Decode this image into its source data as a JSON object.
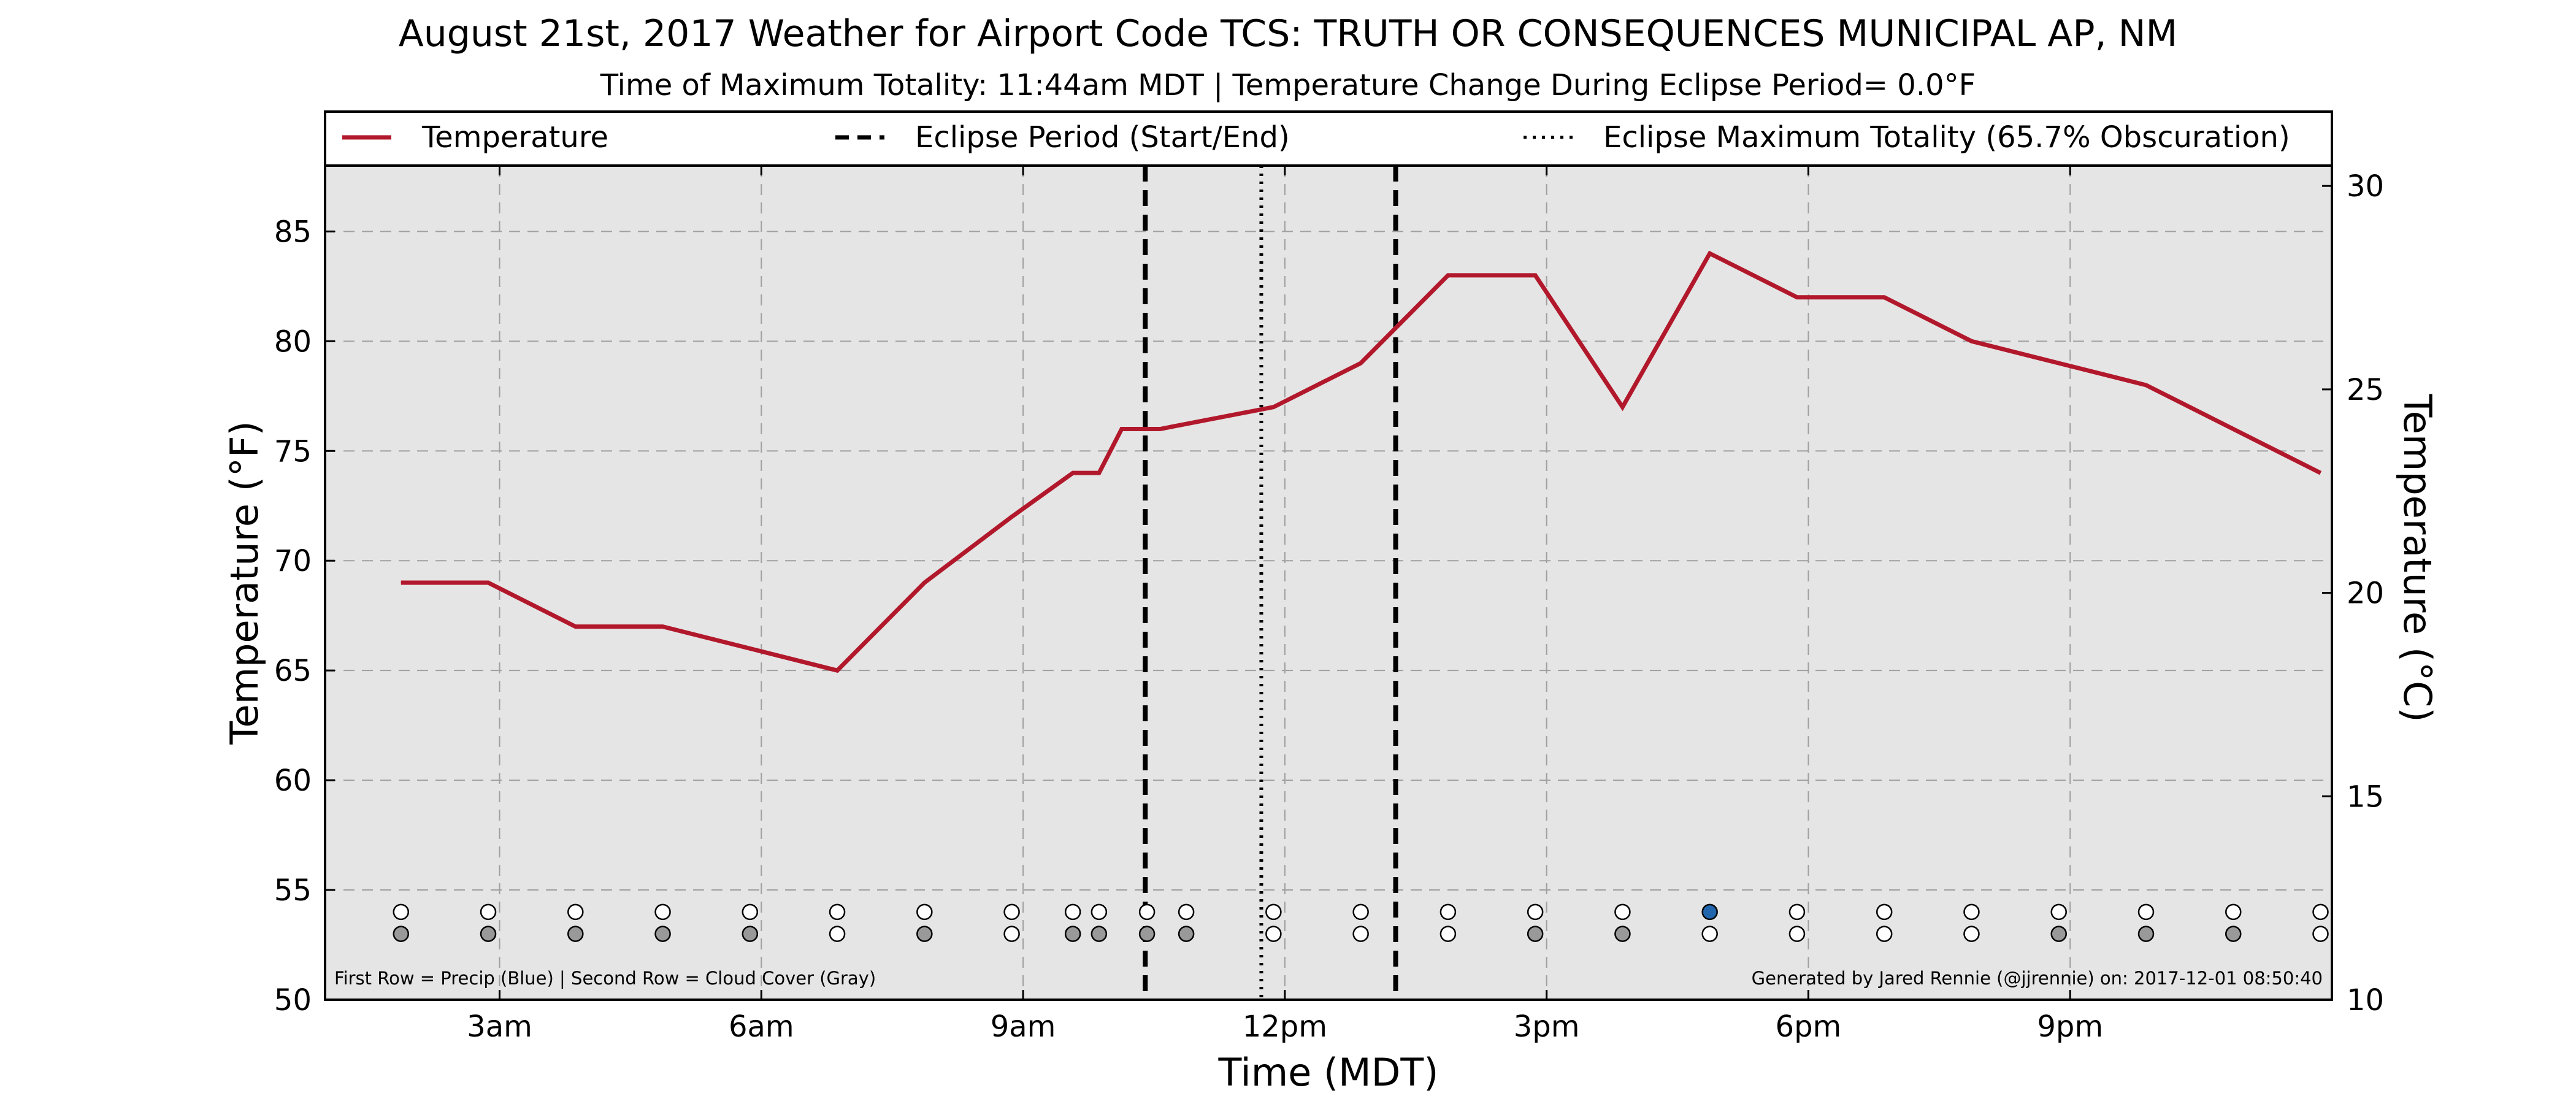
{
  "chart_data": {
    "type": "line",
    "title": "August 21st, 2017 Weather for Airport Code TCS: TRUTH OR CONSEQUENCES MUNICIPAL AP, NM",
    "subtitle": "Time of Maximum Totality: 11:44am MDT | Temperature Change During Eclipse Period= 0.0°F",
    "xlabel": "Time (MDT)",
    "ylabel": "Temperature (°F)",
    "y2label": "Temperature (°C)",
    "x_unit": "hours after midnight MDT, Aug 21 2017",
    "xlim": [
      1,
      24
    ],
    "ylim": [
      50,
      88
    ],
    "y2lim": [
      10,
      30.5
    ],
    "x_ticks": [
      {
        "x": 3,
        "label": "3am"
      },
      {
        "x": 6,
        "label": "6am"
      },
      {
        "x": 9,
        "label": "9am"
      },
      {
        "x": 12,
        "label": "12pm"
      },
      {
        "x": 15,
        "label": "3pm"
      },
      {
        "x": 18,
        "label": "6pm"
      },
      {
        "x": 21,
        "label": "9pm"
      }
    ],
    "y_ticks": [
      50,
      55,
      60,
      65,
      70,
      75,
      80,
      85
    ],
    "y2_ticks": [
      10,
      15,
      20,
      25,
      30
    ],
    "grid": true,
    "legend_placement": "top",
    "legend": [
      {
        "label": "Temperature",
        "style": "solid",
        "color": "#b2182b"
      },
      {
        "label": "Eclipse Period (Start/End)",
        "style": "dashed",
        "color": "#000000"
      },
      {
        "label": "Eclipse Maximum Totality (65.7% Obscuration)",
        "style": "dotted",
        "color": "#000000"
      }
    ],
    "series": [
      {
        "name": "Temperature",
        "color": "#b2182b",
        "points": [
          [
            1.87,
            69
          ],
          [
            2.87,
            69
          ],
          [
            3.87,
            67
          ],
          [
            4.87,
            67
          ],
          [
            5.87,
            66
          ],
          [
            6.87,
            65
          ],
          [
            7.87,
            69
          ],
          [
            8.87,
            72
          ],
          [
            9.57,
            74
          ],
          [
            9.87,
            74
          ],
          [
            10.13,
            76
          ],
          [
            10.57,
            76
          ],
          [
            11.87,
            77
          ],
          [
            12.87,
            79
          ],
          [
            13.87,
            83
          ],
          [
            14.87,
            83
          ],
          [
            15.87,
            77
          ],
          [
            16.87,
            84
          ],
          [
            17.87,
            82
          ],
          [
            18.87,
            82
          ],
          [
            19.87,
            80
          ],
          [
            20.87,
            79
          ],
          [
            21.87,
            78
          ],
          [
            22.87,
            76
          ],
          [
            23.87,
            74
          ]
        ]
      }
    ],
    "eclipse_start": 10.4,
    "eclipse_end": 13.27,
    "eclipse_max": 11.73,
    "marker_rows": {
      "precip_y": 54,
      "cloud_y": 53,
      "points": [
        {
          "x": 1.87,
          "precip": "white",
          "cloud": "gray"
        },
        {
          "x": 2.87,
          "precip": "white",
          "cloud": "gray"
        },
        {
          "x": 3.87,
          "precip": "white",
          "cloud": "gray"
        },
        {
          "x": 4.87,
          "precip": "white",
          "cloud": "gray"
        },
        {
          "x": 5.87,
          "precip": "white",
          "cloud": "gray"
        },
        {
          "x": 6.87,
          "precip": "white",
          "cloud": "white"
        },
        {
          "x": 7.87,
          "precip": "white",
          "cloud": "gray"
        },
        {
          "x": 8.87,
          "precip": "white",
          "cloud": "white"
        },
        {
          "x": 9.57,
          "precip": "white",
          "cloud": "gray"
        },
        {
          "x": 9.87,
          "precip": "white",
          "cloud": "gray"
        },
        {
          "x": 10.42,
          "precip": "white",
          "cloud": "gray"
        },
        {
          "x": 10.87,
          "precip": "white",
          "cloud": "gray"
        },
        {
          "x": 11.87,
          "precip": "white",
          "cloud": "white"
        },
        {
          "x": 12.87,
          "precip": "white",
          "cloud": "white"
        },
        {
          "x": 13.87,
          "precip": "white",
          "cloud": "white"
        },
        {
          "x": 14.87,
          "precip": "white",
          "cloud": "gray"
        },
        {
          "x": 15.87,
          "precip": "white",
          "cloud": "gray"
        },
        {
          "x": 16.87,
          "precip": "blue",
          "cloud": "white"
        },
        {
          "x": 17.87,
          "precip": "white",
          "cloud": "white"
        },
        {
          "x": 18.87,
          "precip": "white",
          "cloud": "white"
        },
        {
          "x": 19.87,
          "precip": "white",
          "cloud": "white"
        },
        {
          "x": 20.87,
          "precip": "white",
          "cloud": "gray"
        },
        {
          "x": 21.87,
          "precip": "white",
          "cloud": "gray"
        },
        {
          "x": 22.87,
          "precip": "white",
          "cloud": "gray"
        },
        {
          "x": 23.87,
          "precip": "white",
          "cloud": "white"
        }
      ]
    },
    "footnote_left": "First Row = Precip (Blue) | Second Row = Cloud Cover (Gray)",
    "footnote_right": "Generated by Jared Rennie (@jjrennie) on: 2017-12-01 08:50:40"
  },
  "colors": {
    "plot_bg": "#e5e5e5",
    "line": "#b2182b",
    "grid": "#a0a0a0",
    "gray_marker": "#999999",
    "blue_marker": "#2166ac",
    "white_marker": "#ffffff"
  }
}
